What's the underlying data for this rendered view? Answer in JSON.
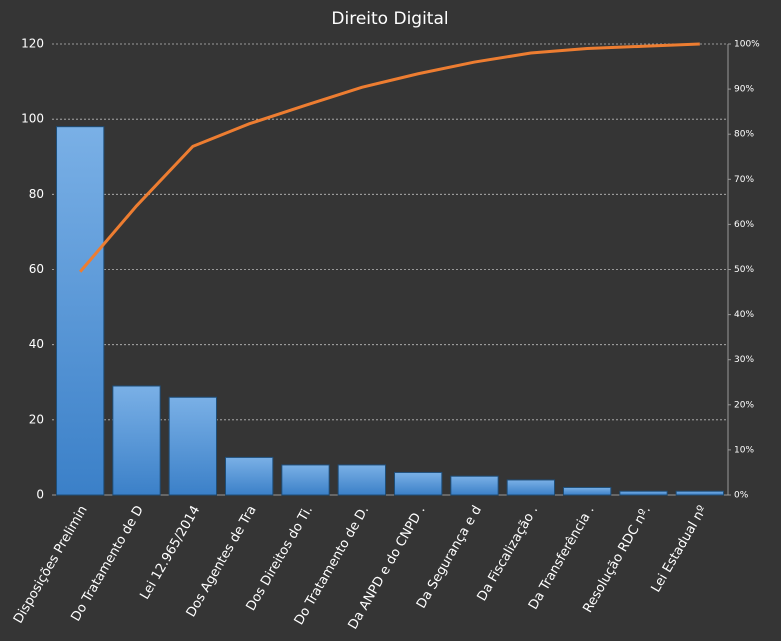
{
  "chart_data": {
    "type": "pareto",
    "title": "Direito Digital",
    "categories": [
      "Disposições Prelimin",
      "Do Tratamento de D",
      "Lei 12.965/2014",
      "Dos Agentes de Tra",
      "Dos Direitos do Ti.",
      "Do Tratamento de D.",
      "Da ANPD e do CNPD .",
      "Da Segurança e d",
      "Da Fiscalização .",
      "Da Transferência .",
      "Resolução RDC nº.",
      "Lei Estadual nº"
    ],
    "series": [
      {
        "type": "bar",
        "color": "#4a90d9",
        "values": [
          98,
          29,
          26,
          10,
          8,
          8,
          6,
          5,
          4,
          2,
          1,
          1
        ]
      },
      {
        "type": "line",
        "color": "#ed7d31",
        "axis": "y2",
        "values": [
          49.5,
          64.1,
          77.3,
          82.3,
          86.4,
          90.4,
          93.4,
          96.0,
          98.0,
          99.0,
          99.5,
          100
        ]
      }
    ],
    "ylim": [
      0,
      120
    ],
    "yticks": [
      0,
      20,
      40,
      60,
      80,
      100,
      120
    ],
    "y2lim": [
      0,
      100
    ],
    "y2ticks": [
      {
        "value": 0,
        "label": "0%"
      },
      {
        "value": 10,
        "label": "10%"
      },
      {
        "value": 20,
        "label": "20%"
      },
      {
        "value": 30,
        "label": "30%"
      },
      {
        "value": 40,
        "label": "40%"
      },
      {
        "value": 50,
        "label": "50%"
      },
      {
        "value": 60,
        "label": "60%"
      },
      {
        "value": 70,
        "label": "70%"
      },
      {
        "value": 80,
        "label": "80%"
      },
      {
        "value": 90,
        "label": "90%"
      },
      {
        "value": 100,
        "label": "100%"
      }
    ],
    "grid": true
  }
}
